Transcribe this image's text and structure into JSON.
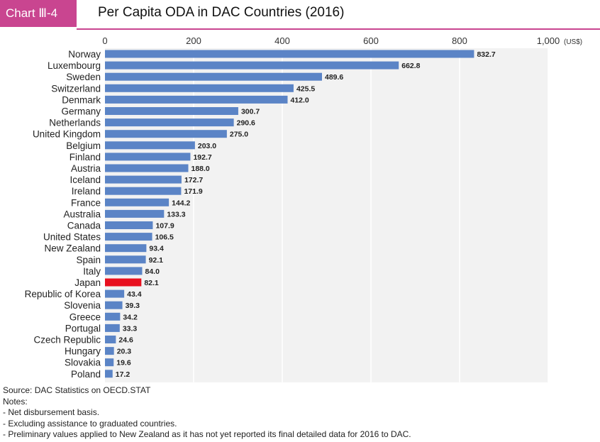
{
  "header": {
    "chart_label": "Chart Ⅲ-4",
    "title": "Per Capita ODA in DAC Countries (2016)"
  },
  "chart_data": {
    "type": "bar",
    "orientation": "horizontal",
    "title": "Per Capita ODA in DAC Countries (2016)",
    "unit_label": "(US$)",
    "xlim": [
      0,
      1000
    ],
    "x_ticks": [
      0,
      200,
      400,
      600,
      800,
      1000
    ],
    "x_tick_labels": [
      "0",
      "200",
      "400",
      "600",
      "800",
      "1,000"
    ],
    "grid": true,
    "categories": [
      "Norway",
      "Luxembourg",
      "Sweden",
      "Switzerland",
      "Denmark",
      "Germany",
      "Netherlands",
      "United Kingdom",
      "Belgium",
      "Finland",
      "Austria",
      "Iceland",
      "Ireland",
      "France",
      "Australia",
      "Canada",
      "United States",
      "New Zealand",
      "Spain",
      "Italy",
      "Japan",
      "Republic of Korea",
      "Slovenia",
      "Greece",
      "Portugal",
      "Czech Republic",
      "Hungary",
      "Slovakia",
      "Poland"
    ],
    "values": [
      832.7,
      662.8,
      489.6,
      425.5,
      412.0,
      300.7,
      290.6,
      275.0,
      203.0,
      192.7,
      188.0,
      172.7,
      171.9,
      144.2,
      133.3,
      107.9,
      106.5,
      93.4,
      92.1,
      84.0,
      82.1,
      43.4,
      39.3,
      34.2,
      33.3,
      24.6,
      20.3,
      19.6,
      17.2
    ],
    "value_labels": [
      "832.7",
      "662.8",
      "489.6",
      "425.5",
      "412.0",
      "300.7",
      "290.6",
      "275.0",
      "203.0",
      "192.7",
      "188.0",
      "172.7",
      "171.9",
      "144.2",
      "133.3",
      "107.9",
      "106.5",
      "93.4",
      "92.1",
      "84.0",
      "82.1",
      "43.4",
      "39.3",
      "34.2",
      "33.3",
      "24.6",
      "20.3",
      "19.6",
      "17.2"
    ],
    "highlight": "Japan",
    "colors": {
      "bar": "#5b84c6",
      "highlight": "#e8101f",
      "plot_bg": "#f2f2f2",
      "grid": "#ffffff"
    }
  },
  "notes": {
    "source": "Source: DAC Statistics on OECD.STAT",
    "heading": "Notes:",
    "items": [
      "- Net disbursement basis.",
      "- Excluding assistance to graduated countries.",
      "- Preliminary values applied to New Zealand as it has not yet reported its final detailed data for 2016 to DAC."
    ]
  }
}
